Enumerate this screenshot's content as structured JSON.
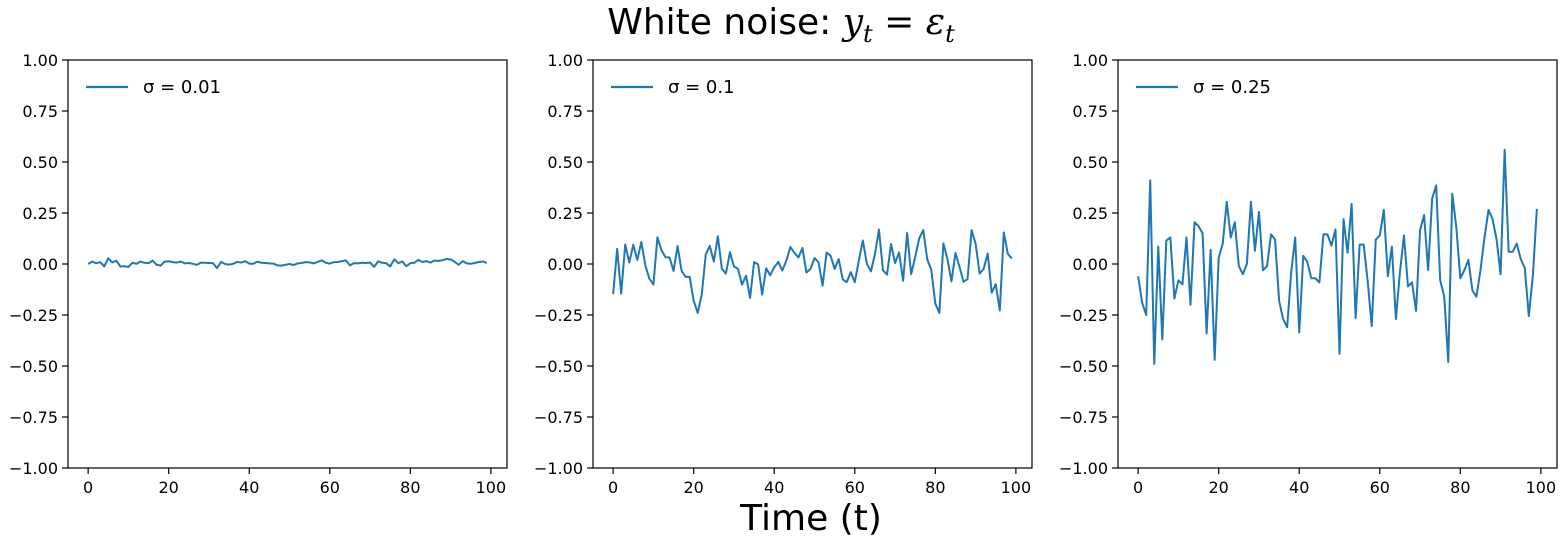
{
  "figure": {
    "suptitle_text": "White noise: ",
    "suptitle_math_lhs": "y",
    "suptitle_math_eq": " = ",
    "suptitle_math_rhs": "ε",
    "suptitle_math_sub": "t",
    "xlabel": "Time (t)"
  },
  "colors": {
    "line": "#1f77b4"
  },
  "chart_data": [
    {
      "type": "line",
      "legend": "σ = 0.01",
      "legend_position": "upper-left",
      "xlim": [
        -5,
        104
      ],
      "ylim": [
        -1.0,
        1.0
      ],
      "xticks": [
        0,
        20,
        40,
        60,
        80,
        100
      ],
      "yticks": [
        -1.0,
        -0.75,
        -0.5,
        -0.25,
        0.0,
        0.25,
        0.5,
        0.75,
        1.0
      ],
      "ytick_labels": [
        "−1.00",
        "−0.75",
        "−0.50",
        "−0.25",
        "0.00",
        "0.25",
        "0.50",
        "0.75",
        "1.00"
      ],
      "grid": false,
      "series": [
        {
          "name": "σ = 0.01",
          "y": [
            0.0,
            0.012,
            0.004,
            0.009,
            -0.012,
            0.028,
            0.008,
            0.016,
            -0.012,
            -0.011,
            -0.014,
            0.006,
            0.001,
            0.012,
            0.006,
            0.004,
            0.017,
            -0.004,
            -0.008,
            0.012,
            0.013,
            0.009,
            0.007,
            0.012,
            0.003,
            0.005,
            0.001,
            -0.004,
            0.007,
            0.006,
            0.005,
            0.004,
            -0.02,
            0.01,
            0.0,
            -0.003,
            0.001,
            0.01,
            0.007,
            0.014,
            0.002,
            0.001,
            0.011,
            0.006,
            0.005,
            0.003,
            0.002,
            -0.007,
            -0.008,
            -0.004,
            0.0,
            -0.005,
            0.003,
            0.005,
            0.009,
            0.008,
            0.003,
            0.01,
            0.018,
            0.006,
            0.002,
            0.009,
            0.01,
            0.014,
            0.018,
            -0.007,
            0.004,
            0.003,
            0.006,
            0.005,
            0.007,
            -0.014,
            0.013,
            0.006,
            0.004,
            -0.012,
            0.023,
            0.004,
            0.012,
            -0.011,
            0.004,
            0.006,
            0.02,
            0.01,
            0.014,
            0.007,
            0.017,
            0.015,
            0.019,
            0.025,
            0.022,
            0.011,
            -0.004,
            0.014,
            0.003,
            0.001,
            0.005,
            0.01,
            0.012,
            0.005
          ]
        }
      ]
    },
    {
      "type": "line",
      "legend": "σ = 0.1",
      "legend_position": "upper-left",
      "xlim": [
        -5,
        104
      ],
      "ylim": [
        -1.0,
        1.0
      ],
      "xticks": [
        0,
        20,
        40,
        60,
        80,
        100
      ],
      "yticks": [
        -1.0,
        -0.75,
        -0.5,
        -0.25,
        0.0,
        0.25,
        0.5,
        0.75,
        1.0
      ],
      "ytick_labels": [
        "−1.00",
        "−0.75",
        "−0.50",
        "−0.25",
        "0.00",
        "0.25",
        "0.50",
        "0.75",
        "1.00"
      ],
      "grid": false,
      "series": [
        {
          "name": "σ = 0.1",
          "y": [
            -0.148,
            0.074,
            -0.146,
            0.096,
            0.007,
            0.094,
            0.02,
            0.108,
            -0.007,
            -0.072,
            -0.101,
            0.131,
            0.068,
            0.033,
            0.032,
            -0.034,
            0.088,
            -0.034,
            -0.063,
            -0.063,
            -0.18,
            -0.24,
            -0.15,
            0.047,
            0.089,
            0.012,
            0.136,
            -0.023,
            -0.047,
            0.058,
            -0.012,
            -0.024,
            -0.101,
            -0.057,
            -0.166,
            0.009,
            -0.002,
            -0.15,
            -0.021,
            -0.055,
            -0.016,
            0.01,
            -0.032,
            0.016,
            0.083,
            0.055,
            0.032,
            0.078,
            -0.042,
            -0.024,
            0.029,
            0.008,
            -0.106,
            0.056,
            0.04,
            -0.024,
            0.024,
            -0.075,
            -0.089,
            -0.04,
            -0.089,
            0.016,
            0.115,
            0.001,
            -0.036,
            0.048,
            0.169,
            -0.031,
            -0.052,
            0.098,
            0.005,
            0.056,
            -0.082,
            0.152,
            -0.05,
            0.034,
            0.126,
            0.166,
            0.022,
            -0.028,
            -0.195,
            -0.24,
            0.101,
            0.024,
            -0.085,
            0.054,
            -0.014,
            -0.087,
            -0.074,
            0.166,
            0.1,
            -0.047,
            -0.024,
            0.051,
            -0.141,
            -0.099,
            -0.228,
            0.155,
            0.05,
            0.027
          ]
        }
      ]
    },
    {
      "type": "line",
      "legend": "σ = 0.25",
      "legend_position": "upper-left",
      "xlim": [
        -5,
        104
      ],
      "ylim": [
        -1.0,
        1.0
      ],
      "xticks": [
        0,
        20,
        40,
        60,
        80,
        100
      ],
      "yticks": [
        -1.0,
        -0.75,
        -0.5,
        -0.25,
        0.0,
        0.25,
        0.5,
        0.75,
        1.0
      ],
      "ytick_labels": [
        "−1.00",
        "−0.75",
        "−0.50",
        "−0.25",
        "0.00",
        "0.25",
        "0.50",
        "0.75",
        "1.00"
      ],
      "grid": false,
      "series": [
        {
          "name": "σ = 0.25",
          "y": [
            -0.06,
            -0.19,
            -0.25,
            0.41,
            -0.49,
            0.085,
            -0.37,
            0.115,
            0.13,
            -0.17,
            -0.08,
            -0.1,
            0.13,
            -0.2,
            0.205,
            0.185,
            0.15,
            -0.34,
            0.07,
            -0.47,
            0.03,
            0.1,
            0.305,
            0.13,
            0.205,
            -0.01,
            -0.05,
            0.0,
            0.305,
            0.065,
            0.255,
            -0.03,
            -0.01,
            0.145,
            0.12,
            -0.18,
            -0.27,
            -0.31,
            -0.04,
            0.13,
            -0.335,
            0.04,
            0.01,
            -0.07,
            -0.07,
            -0.09,
            0.145,
            0.145,
            0.09,
            0.17,
            -0.44,
            0.22,
            0.055,
            0.295,
            -0.265,
            0.095,
            0.095,
            -0.085,
            -0.305,
            0.12,
            0.14,
            0.265,
            -0.06,
            0.085,
            -0.27,
            -0.04,
            0.14,
            -0.11,
            -0.09,
            -0.23,
            0.165,
            0.24,
            -0.03,
            0.32,
            0.385,
            -0.08,
            -0.16,
            -0.48,
            0.345,
            0.18,
            -0.07,
            -0.03,
            0.02,
            -0.13,
            -0.16,
            -0.03,
            0.13,
            0.265,
            0.22,
            0.12,
            -0.05,
            0.56,
            0.06,
            0.06,
            0.1,
            0.025,
            -0.02,
            -0.255,
            -0.06,
            0.27
          ]
        }
      ]
    }
  ]
}
